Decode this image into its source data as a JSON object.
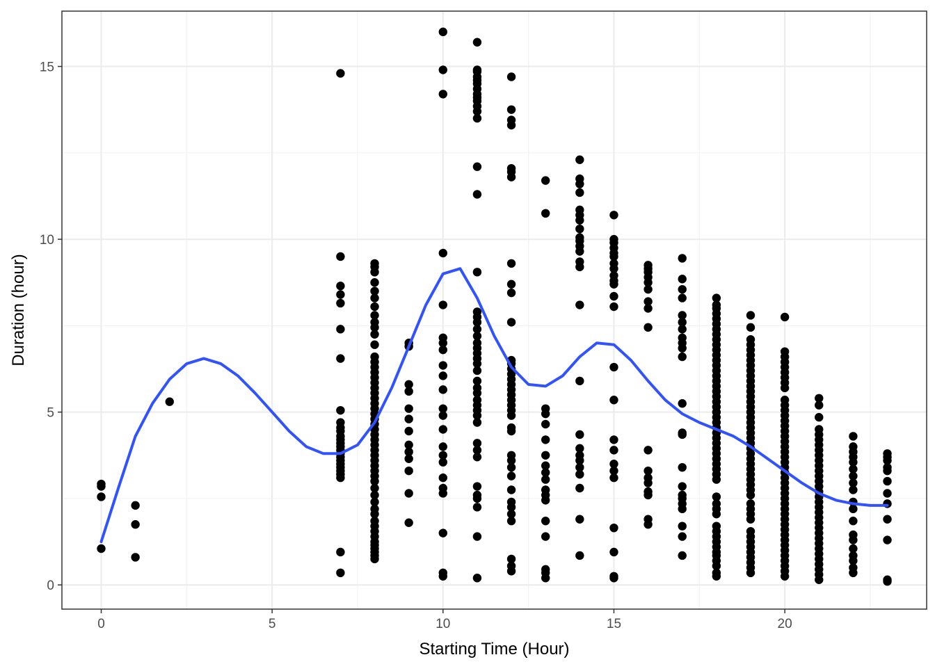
{
  "chart_data": {
    "type": "scatter",
    "title": "",
    "xlabel": "Starting Time (Hour)",
    "ylabel": "Duration (hour)",
    "xlim": [
      -1.15,
      24.15
    ],
    "ylim": [
      -0.7,
      16.6
    ],
    "xticks": [
      0,
      5,
      10,
      15,
      20
    ],
    "yticks": [
      0,
      5,
      10,
      15
    ],
    "xtick_labels": [
      "0",
      "5",
      "10",
      "15",
      "20"
    ],
    "ytick_labels": [
      "0",
      "5",
      "10",
      "15"
    ],
    "grid": true,
    "theme": "bw",
    "point_color": "#000000",
    "smooth_color": "#3152ff",
    "points": {
      "0": [
        1.05,
        2.55,
        2.85,
        2.92
      ],
      "1": [
        0.8,
        1.75,
        2.3
      ],
      "2": [
        5.3
      ],
      "7": [
        0.35,
        0.95,
        3.1,
        3.2,
        3.3,
        3.4,
        3.5,
        3.6,
        3.7,
        3.8,
        3.9,
        4.0,
        4.1,
        4.2,
        4.3,
        4.45,
        4.55,
        4.7,
        5.05,
        6.55,
        7.4,
        8.15,
        8.4,
        8.65,
        9.5,
        14.8
      ],
      "8": [
        0.75,
        0.85,
        0.95,
        1.05,
        1.15,
        1.25,
        1.4,
        1.55,
        1.7,
        1.85,
        2.05,
        2.2,
        2.4,
        2.6,
        2.8,
        3.0,
        3.15,
        3.3,
        3.45,
        3.6,
        3.75,
        3.9,
        4.05,
        4.2,
        4.35,
        4.5,
        4.65,
        4.8,
        4.95,
        5.1,
        5.25,
        5.4,
        5.55,
        5.7,
        5.85,
        6.0,
        6.15,
        6.3,
        6.45,
        6.6,
        6.95,
        7.25,
        7.45,
        7.6,
        7.8,
        8.05,
        8.3,
        8.5,
        8.75,
        9.05,
        9.2,
        9.3
      ],
      "9": [
        1.8,
        2.65,
        3.3,
        3.65,
        3.85,
        4.05,
        4.45,
        4.8,
        5.1,
        5.6,
        5.8,
        6.9,
        7.0
      ],
      "10": [
        0.25,
        0.35,
        1.5,
        2.65,
        2.8,
        3.1,
        3.55,
        3.75,
        4.0,
        4.5,
        4.9,
        5.1,
        5.65,
        6.05,
        6.35,
        6.8,
        7.0,
        7.15,
        8.1,
        9.6,
        14.2,
        14.9,
        16.0
      ],
      "11": [
        0.2,
        1.4,
        2.25,
        2.5,
        2.6,
        2.85,
        3.7,
        3.9,
        4.1,
        4.7,
        4.9,
        5.05,
        5.2,
        5.35,
        5.55,
        5.7,
        5.9,
        6.2,
        6.4,
        6.55,
        6.7,
        6.85,
        7.0,
        7.2,
        7.4,
        7.6,
        7.75,
        7.9,
        9.05,
        11.3,
        12.1,
        13.5,
        13.7,
        13.85,
        14.0,
        14.1,
        14.2,
        14.35,
        14.5,
        14.6,
        14.7,
        14.85,
        14.9,
        15.7
      ],
      "12": [
        0.4,
        0.55,
        0.75,
        1.85,
        2.05,
        2.25,
        2.4,
        2.75,
        3.15,
        3.4,
        3.6,
        3.75,
        4.45,
        4.55,
        4.9,
        5.05,
        5.2,
        5.35,
        5.5,
        5.65,
        5.8,
        5.95,
        6.1,
        6.25,
        6.4,
        6.5,
        7.6,
        8.45,
        8.7,
        9.3,
        11.8,
        11.95,
        12.05,
        13.3,
        13.45,
        13.75,
        14.7
      ],
      "13": [
        0.2,
        0.35,
        0.45,
        1.4,
        1.85,
        2.45,
        2.6,
        2.75,
        3.05,
        3.25,
        3.45,
        3.75,
        4.2,
        4.65,
        4.95,
        5.1,
        10.75,
        11.7
      ],
      "14": [
        0.85,
        1.9,
        2.8,
        3.2,
        3.4,
        3.6,
        3.75,
        3.95,
        4.35,
        5.9,
        8.1,
        9.2,
        9.35,
        9.65,
        9.8,
        9.95,
        10.05,
        10.3,
        10.55,
        10.7,
        10.85,
        11.35,
        11.6,
        11.75,
        12.3
      ],
      "15": [
        0.2,
        0.25,
        0.95,
        1.65,
        3.1,
        3.3,
        3.5,
        3.9,
        4.2,
        5.35,
        6.3,
        8.05,
        8.35,
        8.7,
        8.8,
        8.95,
        9.15,
        9.3,
        9.5,
        9.6,
        9.75,
        9.9,
        10.0,
        10.7
      ],
      "16": [
        1.75,
        1.9,
        2.6,
        2.7,
        2.95,
        3.1,
        3.3,
        3.9,
        7.45,
        8.0,
        8.2,
        8.55,
        8.75,
        8.9,
        9.05,
        9.15,
        9.25
      ],
      "17": [
        0.85,
        1.4,
        1.7,
        2.2,
        2.35,
        2.5,
        2.6,
        2.85,
        3.4,
        4.35,
        4.4,
        5.25,
        6.6,
        6.85,
        7.0,
        7.15,
        7.4,
        7.6,
        7.8,
        8.3,
        8.55,
        8.85,
        9.45
      ],
      "18": [
        0.25,
        0.35,
        0.55,
        0.7,
        0.85,
        0.95,
        1.1,
        1.25,
        1.4,
        1.55,
        1.7,
        2.05,
        2.2,
        2.35,
        2.55,
        3.05,
        3.2,
        3.35,
        3.5,
        3.65,
        3.8,
        3.95,
        4.1,
        4.25,
        4.4,
        4.55,
        4.7,
        4.85,
        5.0,
        5.15,
        5.3,
        5.45,
        5.6,
        5.75,
        5.9,
        6.05,
        6.2,
        6.35,
        6.5,
        6.65,
        6.8,
        6.95,
        7.1,
        7.25,
        7.4,
        7.55,
        7.7,
        7.85,
        8.0,
        8.1,
        8.3
      ],
      "19": [
        0.35,
        0.5,
        0.65,
        0.8,
        0.95,
        1.1,
        1.25,
        1.4,
        1.55,
        1.9,
        2.05,
        2.2,
        2.35,
        2.6,
        2.75,
        2.9,
        3.05,
        3.2,
        3.35,
        3.5,
        3.65,
        3.8,
        3.95,
        4.1,
        4.25,
        4.4,
        4.55,
        4.7,
        4.85,
        5.0,
        5.15,
        5.3,
        5.45,
        5.6,
        5.75,
        5.9,
        6.05,
        6.2,
        6.35,
        6.5,
        6.65,
        6.8,
        6.95,
        7.1,
        7.45,
        7.8
      ],
      "20": [
        0.25,
        0.4,
        0.55,
        0.7,
        0.85,
        1.0,
        1.15,
        1.3,
        1.45,
        1.6,
        1.75,
        1.9,
        2.05,
        2.2,
        2.35,
        2.5,
        2.65,
        2.8,
        2.95,
        3.1,
        3.25,
        3.4,
        3.55,
        3.7,
        3.85,
        4.0,
        4.15,
        4.3,
        4.45,
        4.6,
        4.75,
        4.9,
        5.05,
        5.2,
        5.35,
        5.7,
        5.85,
        6.0,
        6.15,
        6.3,
        6.45,
        6.6,
        6.75,
        7.75
      ],
      "21": [
        0.15,
        0.3,
        0.45,
        0.6,
        0.75,
        0.9,
        1.05,
        1.2,
        1.35,
        1.5,
        1.65,
        1.8,
        1.95,
        2.1,
        2.25,
        2.4,
        2.55,
        2.7,
        2.85,
        3.0,
        3.15,
        3.3,
        3.45,
        3.6,
        3.75,
        3.9,
        4.05,
        4.2,
        4.35,
        4.5,
        4.85,
        5.2,
        5.4
      ],
      "22": [
        0.35,
        0.5,
        0.7,
        0.85,
        1.05,
        1.3,
        1.45,
        1.85,
        2.2,
        2.4,
        2.75,
        2.95,
        3.15,
        3.35,
        3.55,
        3.7,
        3.85,
        4.0,
        4.3
      ],
      "23": [
        0.1,
        0.15,
        1.3,
        1.9,
        2.35,
        2.65,
        3.0,
        3.3,
        3.4,
        3.6,
        3.7,
        3.8
      ]
    },
    "smooth_line": {
      "x": [
        0,
        0.5,
        1,
        1.5,
        2,
        2.5,
        3,
        3.5,
        4,
        4.5,
        5,
        5.5,
        6,
        6.5,
        7,
        7.5,
        8,
        8.5,
        9,
        9.5,
        10,
        10.5,
        11,
        11.5,
        12,
        12.5,
        13,
        13.5,
        14,
        14.5,
        15,
        15.5,
        16,
        16.5,
        17,
        17.5,
        18,
        18.5,
        19,
        19.5,
        20,
        20.5,
        21,
        21.5,
        22,
        22.5,
        23
      ],
      "y": [
        1.25,
        2.8,
        4.3,
        5.25,
        5.95,
        6.4,
        6.55,
        6.4,
        6.05,
        5.55,
        5.0,
        4.45,
        4.0,
        3.8,
        3.8,
        4.05,
        4.7,
        5.7,
        6.9,
        8.1,
        9.0,
        9.15,
        8.3,
        7.2,
        6.3,
        5.8,
        5.75,
        6.05,
        6.6,
        7.0,
        6.95,
        6.5,
        5.9,
        5.35,
        4.95,
        4.7,
        4.5,
        4.3,
        4.0,
        3.65,
        3.3,
        2.95,
        2.65,
        2.45,
        2.35,
        2.3,
        2.3
      ]
    }
  }
}
